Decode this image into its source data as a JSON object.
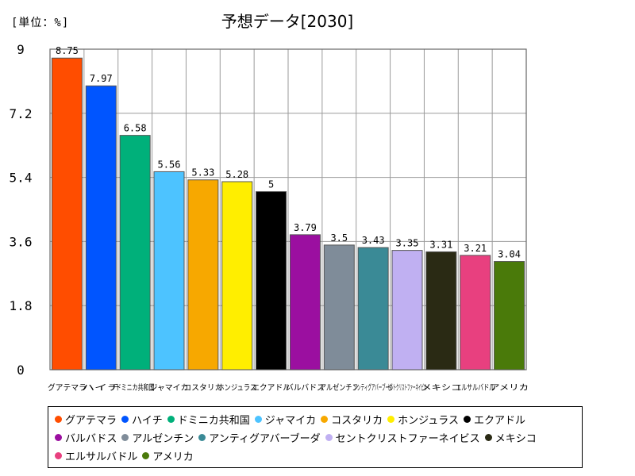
{
  "unit_label": "[単位：%]",
  "chart_data": {
    "type": "bar",
    "title": "予想データ[2030]",
    "xlabel": "",
    "ylabel": "",
    "ylim": [
      0,
      9
    ],
    "yticks": [
      "0",
      "1.8",
      "3.6",
      "5.4",
      "7.2",
      "9"
    ],
    "grid": true,
    "categories": [
      "グアテマラ",
      "ハイチ",
      "ドミニカ共和国",
      "ジャマイカ",
      "コスタリカ",
      "ホンジュラス",
      "エクアドル",
      "バルバドス",
      "アルゼンチン",
      "アンティグアバーブーダ",
      "セントクリストファーネイビス",
      "メキシコ",
      "エルサルバドル",
      "アメリカ"
    ],
    "values": [
      8.75,
      7.97,
      6.58,
      5.56,
      5.33,
      5.28,
      5,
      3.79,
      3.5,
      3.43,
      3.35,
      3.31,
      3.21,
      3.04
    ],
    "value_labels": [
      "8.75",
      "7.97",
      "6.58",
      "5.56",
      "5.33",
      "5.28",
      "5",
      "3.79",
      "3.5",
      "3.43",
      "3.35",
      "3.31",
      "3.21",
      "3.04"
    ],
    "colors": [
      "#ff4d00",
      "#0055ff",
      "#00b07a",
      "#4dc3ff",
      "#f7a800",
      "#ffee00",
      "#000000",
      "#9b0fa0",
      "#7f8c99",
      "#3a8a96",
      "#c0b0f2",
      "#2a2a14",
      "#e8407f",
      "#4a7a0a"
    ],
    "legend_position": "bottom"
  }
}
